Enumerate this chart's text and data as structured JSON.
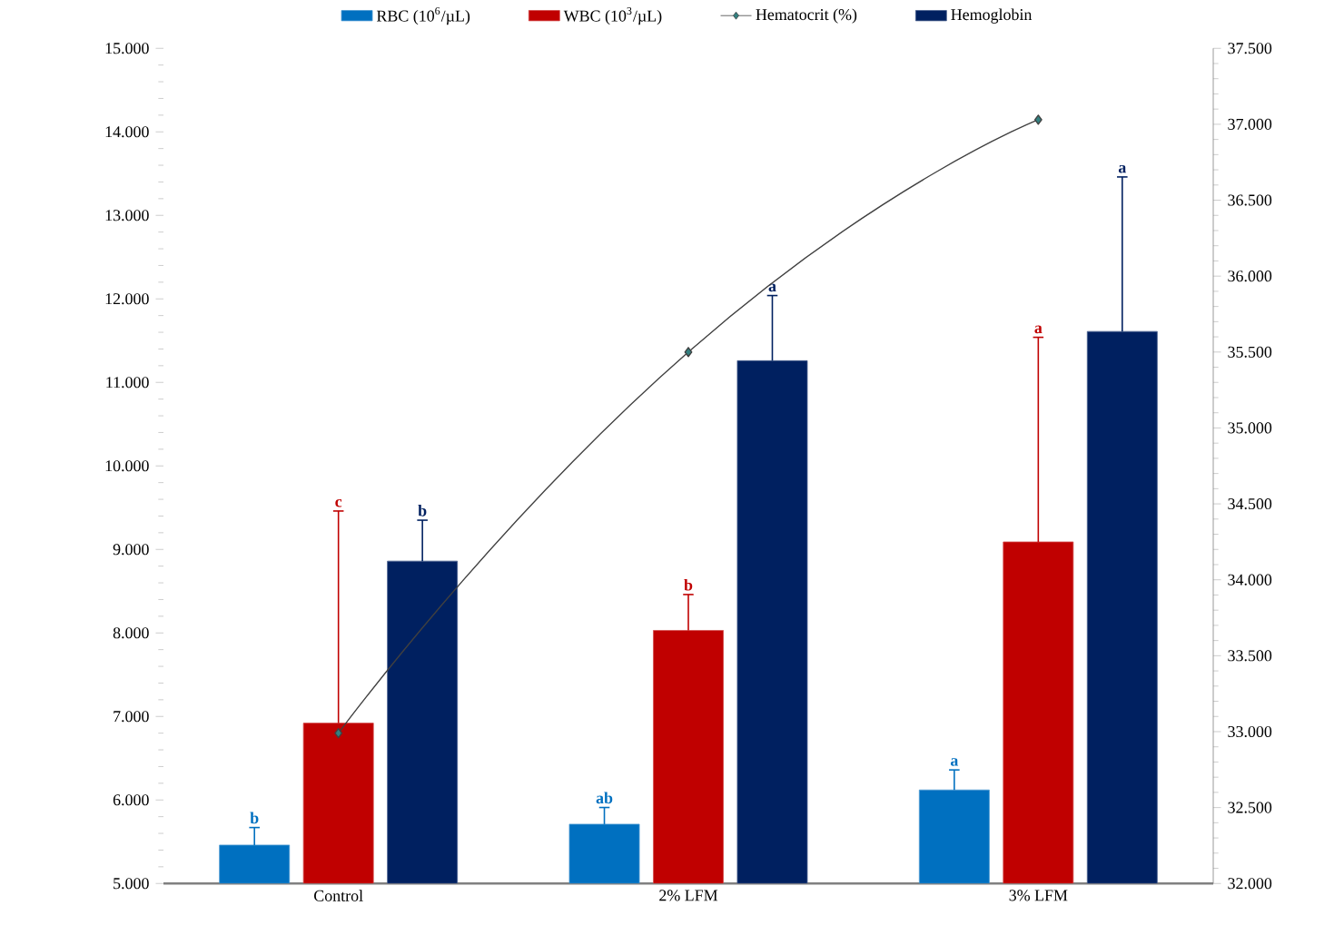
{
  "chart_data": {
    "type": "bar",
    "categories": [
      "Control",
      "2% LFM",
      "3% LFM"
    ],
    "ylim": [
      5,
      15
    ],
    "yticks": [
      {
        "value": 5,
        "label": "5.000"
      },
      {
        "value": 6,
        "label": "6.000"
      },
      {
        "value": 7,
        "label": "7.000"
      },
      {
        "value": 8,
        "label": "8.000"
      },
      {
        "value": 9,
        "label": "9.000"
      },
      {
        "value": 10,
        "label": "10.000"
      },
      {
        "value": 11,
        "label": "11.000"
      },
      {
        "value": 12,
        "label": "12.000"
      },
      {
        "value": 13,
        "label": "13.000"
      },
      {
        "value": 14,
        "label": "14.000"
      },
      {
        "value": 15,
        "label": "15.000"
      }
    ],
    "y2lim": [
      32,
      37.5
    ],
    "y2ticks": [
      {
        "value": 32,
        "label": "32.000"
      },
      {
        "value": 32.5,
        "label": "32.500"
      },
      {
        "value": 33,
        "label": "33.000"
      },
      {
        "value": 33.5,
        "label": "33.500"
      },
      {
        "value": 34,
        "label": "34.000"
      },
      {
        "value": 34.5,
        "label": "34.500"
      },
      {
        "value": 35,
        "label": "35.000"
      },
      {
        "value": 35.5,
        "label": "35.500"
      },
      {
        "value": 36,
        "label": "36.000"
      },
      {
        "value": 36.5,
        "label": "36.500"
      },
      {
        "value": 37,
        "label": "37.000"
      },
      {
        "value": 37.5,
        "label": "37.500"
      }
    ],
    "legend": "top",
    "grid": false,
    "series": [
      {
        "name": "RBC (10$^{6}$/µL)",
        "color": "#0070c0",
        "values": [
          5.46,
          5.71,
          6.12
        ],
        "errors": [
          [
            5.46,
            5.67
          ],
          [
            5.71,
            5.91
          ],
          [
            6.12,
            6.36
          ]
        ]
      },
      {
        "name": "WBC (10$^{3}$/µL)",
        "color": "#c00000",
        "values": [
          6.92,
          8.03,
          9.09
        ],
        "errors": [
          [
            6.92,
            9.46
          ],
          [
            8.03,
            8.46
          ],
          [
            9.09,
            11.54
          ]
        ]
      },
      {
        "name": "Hematocrit (%)",
        "type": "line",
        "axis": "y2",
        "marker": "diamond",
        "color": "#404040",
        "values": [
          32.99,
          35.5,
          37.03
        ]
      },
      {
        "name": "Hemoglobin",
        "color": "#002060",
        "values": [
          8.86,
          11.26,
          11.61
        ],
        "errors": [
          [
            8.86,
            9.35
          ],
          [
            11.26,
            12.04
          ],
          [
            11.61,
            13.46
          ]
        ]
      }
    ],
    "annotations": [
      "b",
      "ab",
      "a",
      "c",
      "b",
      "a",
      "b",
      "a",
      "a"
    ]
  }
}
